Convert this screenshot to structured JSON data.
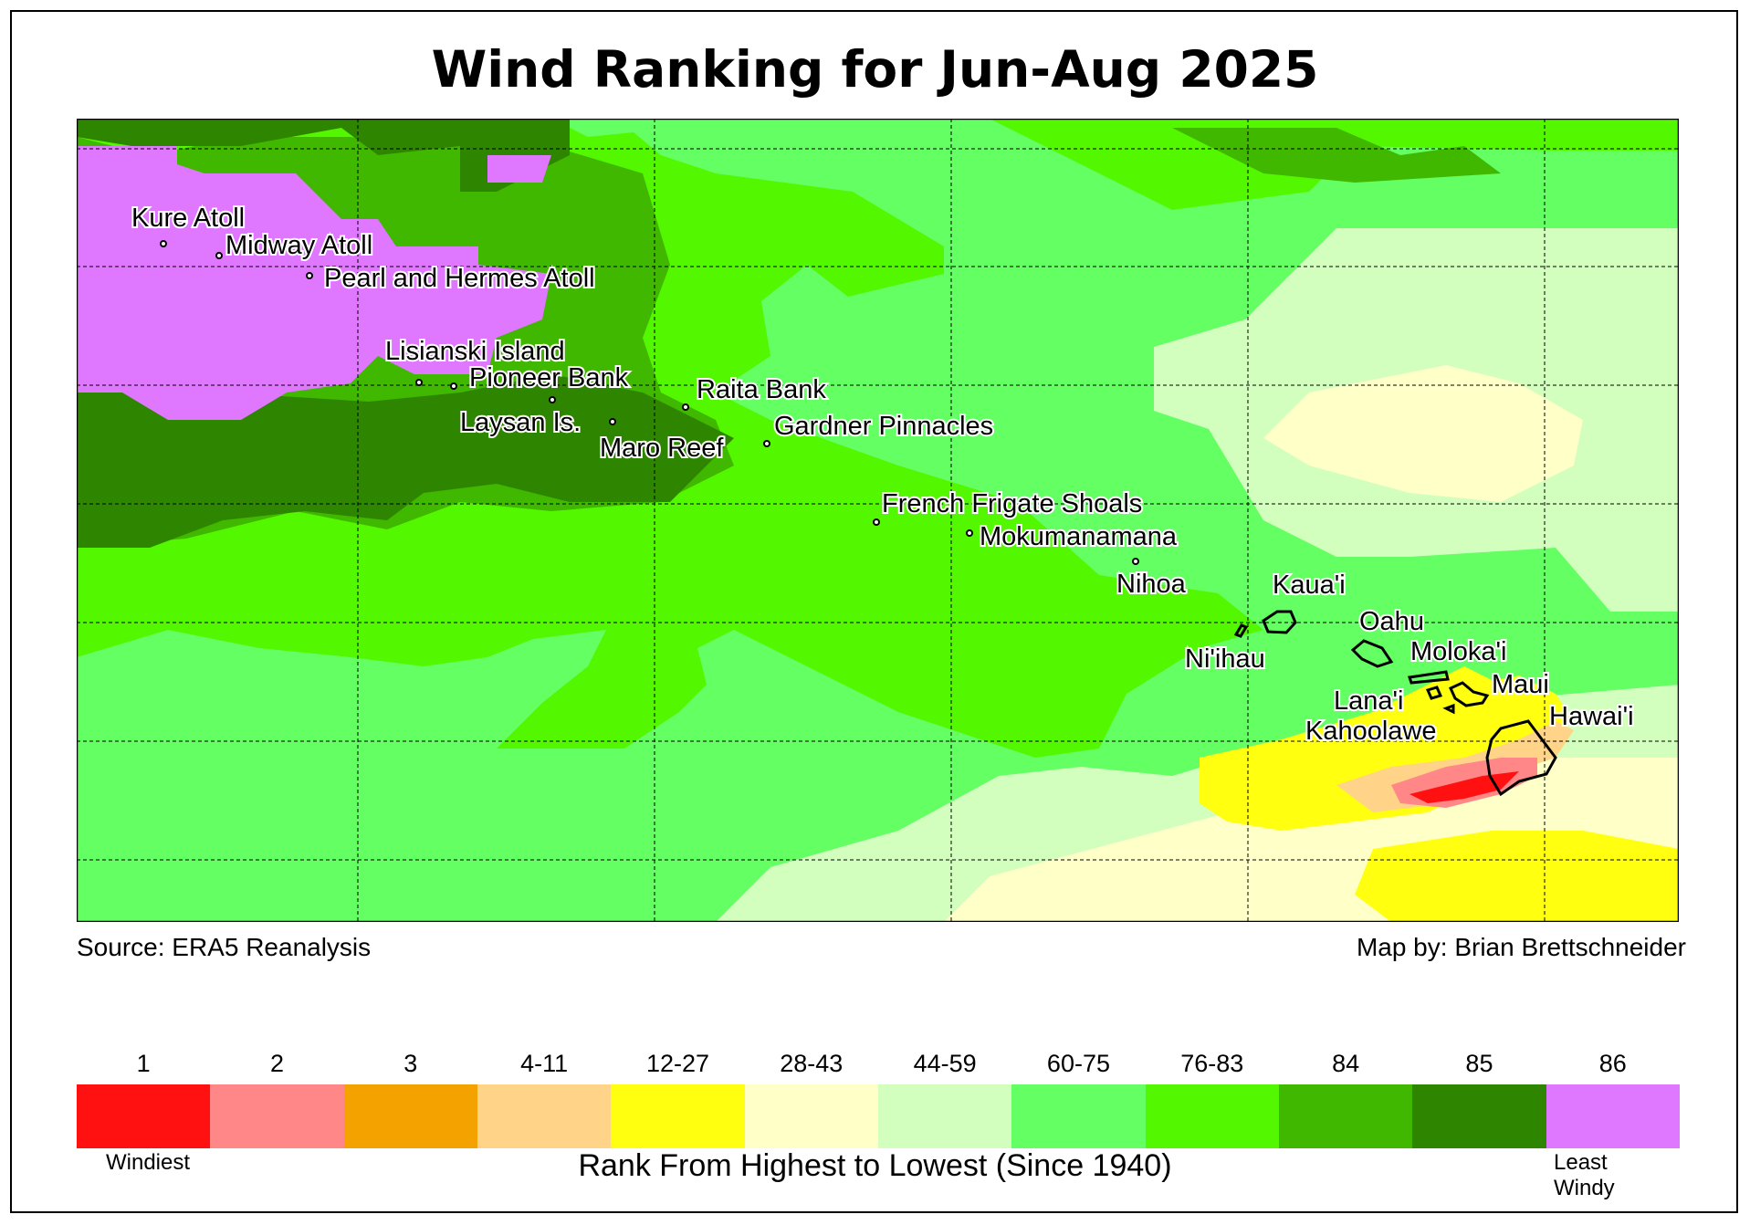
{
  "title": "Wind Ranking for Jun-Aug 2025",
  "source": "Source: ERA5 Reanalysis",
  "credit": "Map by: Brian Brettschneider",
  "legend": {
    "caption": "Rank From Highest to Lowest (Since 1940)",
    "low_end": "Windiest",
    "high_end": [
      "Least",
      "Windy"
    ],
    "classes": [
      {
        "label": "1",
        "color": "#ff1111"
      },
      {
        "label": "2",
        "color": "#ff8787"
      },
      {
        "label": "3",
        "color": "#f4a200"
      },
      {
        "label": "4-11",
        "color": "#ffd488"
      },
      {
        "label": "12-27",
        "color": "#ffff0f"
      },
      {
        "label": "28-43",
        "color": "#ffffc8"
      },
      {
        "label": "44-59",
        "color": "#d2ffbe"
      },
      {
        "label": "60-75",
        "color": "#63ff63"
      },
      {
        "label": "76-83",
        "color": "#52f700"
      },
      {
        "label": "84",
        "color": "#40b800"
      },
      {
        "label": "85",
        "color": "#2e8600"
      },
      {
        "label": "86",
        "color": "#df77ff"
      }
    ]
  },
  "places": [
    {
      "name": "Kure Atoll"
    },
    {
      "name": "Midway Atoll"
    },
    {
      "name": "Pearl and Hermes Atoll"
    },
    {
      "name": "Lisianski Island"
    },
    {
      "name": "Pioneer Bank"
    },
    {
      "name": "Raita Bank"
    },
    {
      "name": "Laysan Is."
    },
    {
      "name": "Gardner Pinnacles"
    },
    {
      "name": "Maro Reef"
    },
    {
      "name": "French Frigate Shoals"
    },
    {
      "name": "Mokumanamana"
    },
    {
      "name": "Nihoa"
    },
    {
      "name": "Kaua'i"
    },
    {
      "name": "Ni'ihau"
    },
    {
      "name": "Oahu"
    },
    {
      "name": "Moloka'i"
    },
    {
      "name": "Maui"
    },
    {
      "name": "Lana'i"
    },
    {
      "name": "Kahoolawe"
    },
    {
      "name": "Hawai'i"
    }
  ]
}
